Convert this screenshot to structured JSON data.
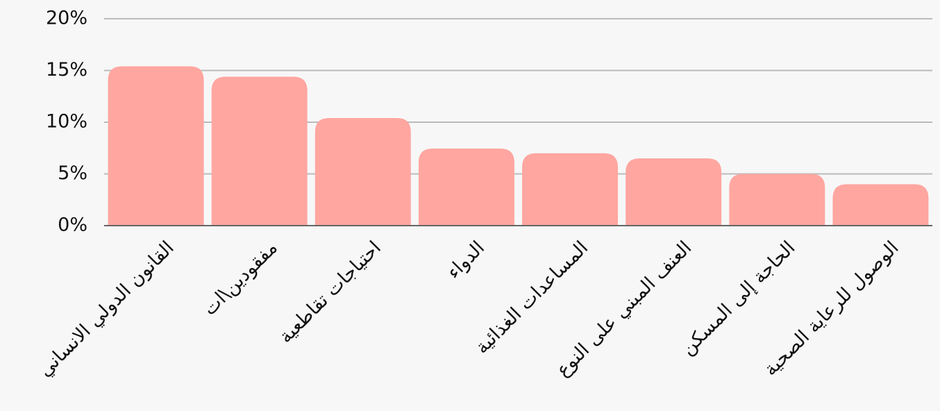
{
  "chart_data": {
    "type": "bar",
    "categories": [
      "القانون الدولي الانساني",
      "مفقودين\\ات",
      "احتياجات تقاطعية",
      "الدواء",
      "المساعدات الغذائية",
      "العنف المبني على النوع",
      "الحاجة إلى المسكن",
      "الوصول للرعاية الصحية"
    ],
    "values": [
      15.4,
      14.4,
      10.4,
      7.45,
      7.0,
      6.5,
      5.0,
      4.0
    ],
    "color": "#ffa6a0",
    "ylim": [
      0,
      20
    ],
    "yticks": [
      {
        "value": 0,
        "label": "0%"
      },
      {
        "value": 5,
        "label": "5%"
      },
      {
        "value": 10,
        "label": "10%"
      },
      {
        "value": 15,
        "label": "15%"
      },
      {
        "value": 20,
        "label": "20%"
      }
    ],
    "grid": true
  }
}
